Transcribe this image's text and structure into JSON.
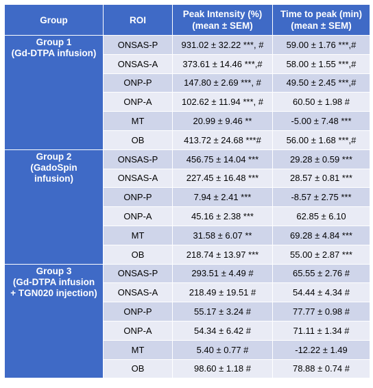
{
  "table": {
    "headers": {
      "group": "Group",
      "roi": "ROI",
      "peak_intensity_line1": "Peak Intensity (%)",
      "peak_intensity_line2": "(mean ± SEM)",
      "time_to_peak_line1": "Time to peak (min)",
      "time_to_peak_line2": "(mean ± SEM)"
    },
    "groups": [
      {
        "label_lines": [
          "Group 1",
          "(Gd-DTPA infusion)"
        ],
        "rows": [
          {
            "roi": "ONSAS-P",
            "peak": "931.02 ± 32.22 ***, #",
            "time": "59.00 ± 1.76 ***,#"
          },
          {
            "roi": "ONSAS-A",
            "peak": "373.61 ± 14.46 ***,#",
            "time": "58.00 ± 1.55 ***,#"
          },
          {
            "roi": "ONP-P",
            "peak": "147.80 ± 2.69 ***, #",
            "time": "49.50 ± 2.45 ***,#"
          },
          {
            "roi": "ONP-A",
            "peak": "102.62 ± 11.94 ***, #",
            "time": "60.50 ± 1.98 #"
          },
          {
            "roi": "MT",
            "peak": "20.99 ± 9.46 **",
            "time": "-5.00 ± 7.48 ***"
          },
          {
            "roi": "OB",
            "peak": "413.72 ± 24.68 ***#",
            "time": "56.00 ± 1.68 ***,#"
          }
        ]
      },
      {
        "label_lines": [
          "Group 2",
          "(GadoSpin",
          "infusion)"
        ],
        "rows": [
          {
            "roi": "ONSAS-P",
            "peak": "456.75 ± 14.04 ***",
            "time": "29.28 ± 0.59 ***"
          },
          {
            "roi": "ONSAS-A",
            "peak": "227.45 ± 16.48 ***",
            "time": "28.57 ± 0.81 ***"
          },
          {
            "roi": "ONP-P",
            "peak": "7.94 ± 2.41 ***",
            "time": "-8.57 ± 2.75 ***"
          },
          {
            "roi": "ONP-A",
            "peak": "45.16 ± 2.38 ***",
            "time": "62.85 ± 6.10"
          },
          {
            "roi": "MT",
            "peak": "31.58 ± 6.07 **",
            "time": "69.28 ± 4.84 ***"
          },
          {
            "roi": "OB",
            "peak": "218.74 ± 13.97 ***",
            "time": "55.00 ± 2.87 ***"
          }
        ]
      },
      {
        "label_lines": [
          "Group 3",
          "(Gd-DTPA infusion",
          "+ TGN020 injection)"
        ],
        "rows": [
          {
            "roi": "ONSAS-P",
            "peak": "293.51 ± 4.49 #",
            "time": "65.55 ± 2.76 #"
          },
          {
            "roi": "ONSAS-A",
            "peak": "218.49 ± 19.51 #",
            "time": "54.44 ± 4.34 #"
          },
          {
            "roi": "ONP-P",
            "peak": "55.17 ± 3.24 #",
            "time": "77.77 ± 0.98 #"
          },
          {
            "roi": "ONP-A",
            "peak": "54.34 ± 6.42 #",
            "time": "71.11 ± 1.34 #"
          },
          {
            "roi": "MT",
            "peak": "5.40 ± 0.77 #",
            "time": "-12.22 ± 1.49"
          },
          {
            "roi": "OB",
            "peak": "98.60 ± 1.18 #",
            "time": "78.88 ± 0.74 #"
          }
        ]
      }
    ]
  },
  "colors": {
    "header_bg": "#3f6ac6",
    "row_dark": "#cfd5ea",
    "row_light": "#e9ebf5"
  }
}
